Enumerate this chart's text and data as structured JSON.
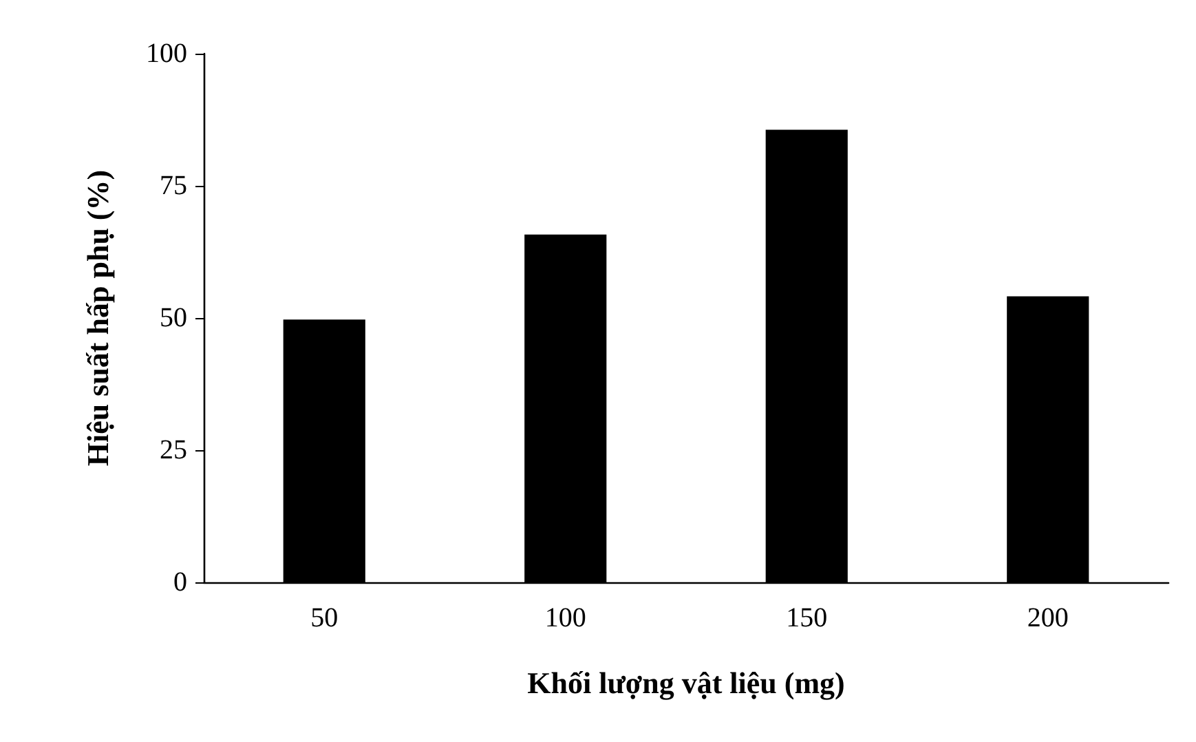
{
  "chart_data": {
    "type": "bar",
    "categories": [
      "50",
      "100",
      "150",
      "200"
    ],
    "values": [
      49.7,
      65.8,
      85.6,
      54.1
    ],
    "color": "#000000",
    "xlabel": "Khối lượng vật liệu (mg)",
    "ylabel": "Hiệu suất hấp phụ (%)",
    "ylim": [
      0,
      100
    ],
    "yticks": [
      0,
      25,
      50,
      75,
      100
    ],
    "grid": false
  }
}
